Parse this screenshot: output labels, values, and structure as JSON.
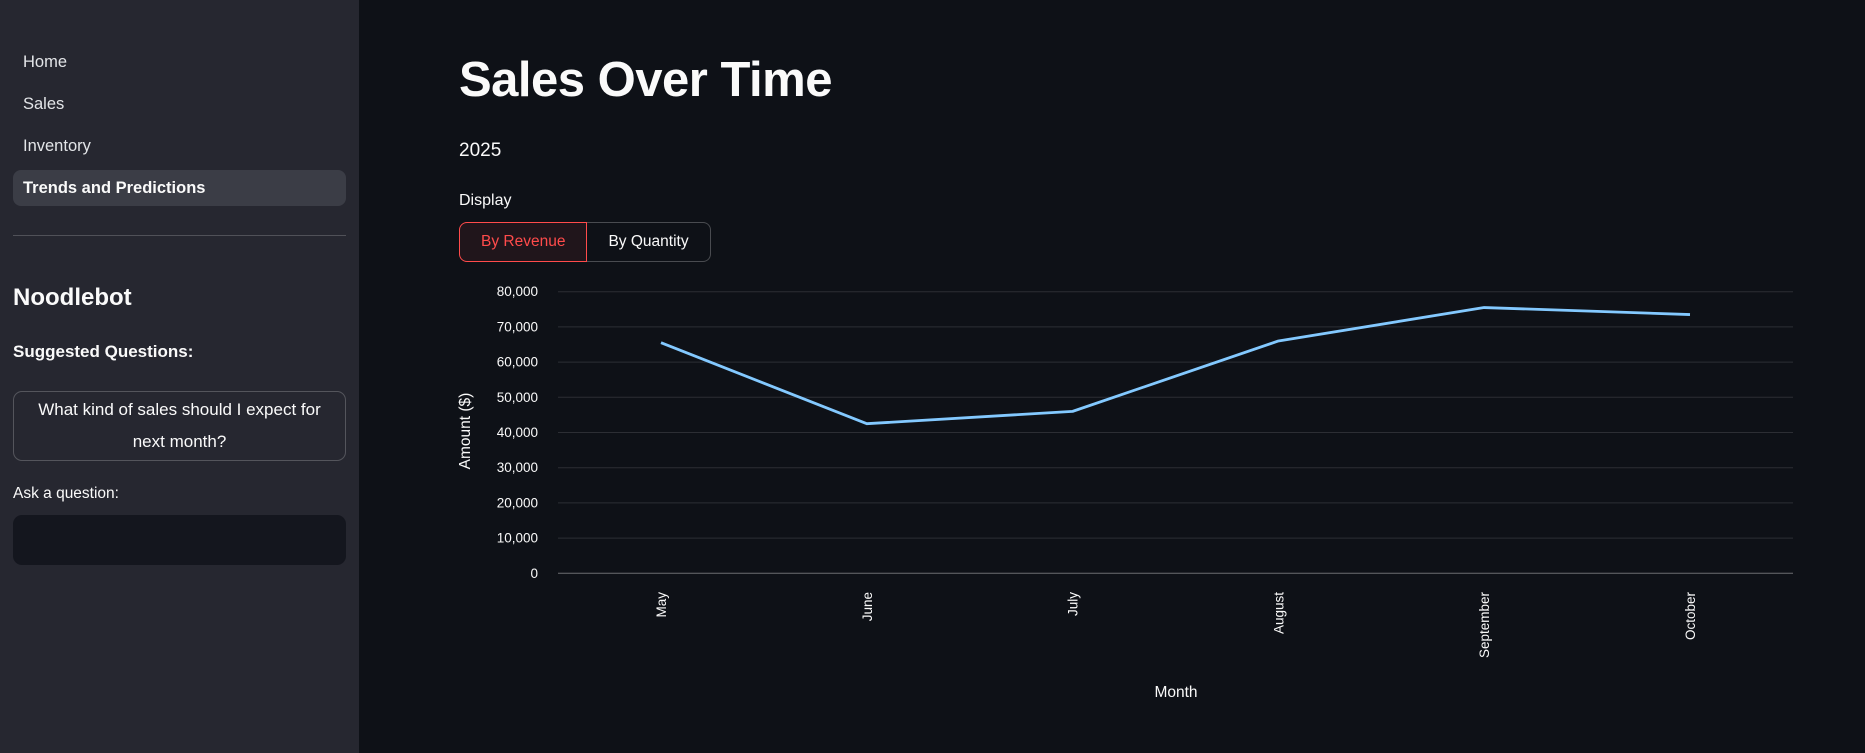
{
  "sidebar": {
    "items": [
      {
        "label": "Home",
        "selected": false
      },
      {
        "label": "Sales",
        "selected": false
      },
      {
        "label": "Inventory",
        "selected": false
      },
      {
        "label": "Trends and Predictions",
        "selected": true
      }
    ],
    "bot": {
      "title": "Noodlebot",
      "suggested_heading": "Suggested Questions:",
      "suggestions": [
        "What kind of sales should I expect for next month?"
      ],
      "ask_label": "Ask a question:",
      "input_value": "",
      "input_placeholder": ""
    }
  },
  "main": {
    "title": "Sales Over Time",
    "subtitle": "2025",
    "display_label": "Display",
    "display_options": [
      {
        "label": "By Revenue",
        "selected": true
      },
      {
        "label": "By Quantity",
        "selected": false
      }
    ]
  },
  "colors": {
    "background": "#0e1117",
    "sidebar_background": "#262730",
    "selected_item_background": "#3b3d46",
    "text": "#fafafa",
    "accent_red": "#ff4b4b",
    "chart_line": "#83c9ff",
    "gridline": "rgba(250,250,250,0.13)"
  },
  "chart_data": {
    "type": "line",
    "x": [
      "May",
      "June",
      "July",
      "August",
      "September",
      "October"
    ],
    "series": [
      {
        "name": "Revenue",
        "values": [
          65500,
          42500,
          46000,
          66000,
          75500,
          73500
        ]
      }
    ],
    "xlabel": "Month",
    "ylabel": "Amount ($)",
    "ylim": [
      0,
      80000
    ],
    "ytick_step": 10000,
    "grid": true,
    "legend": false,
    "line_color": "#83c9ff"
  }
}
